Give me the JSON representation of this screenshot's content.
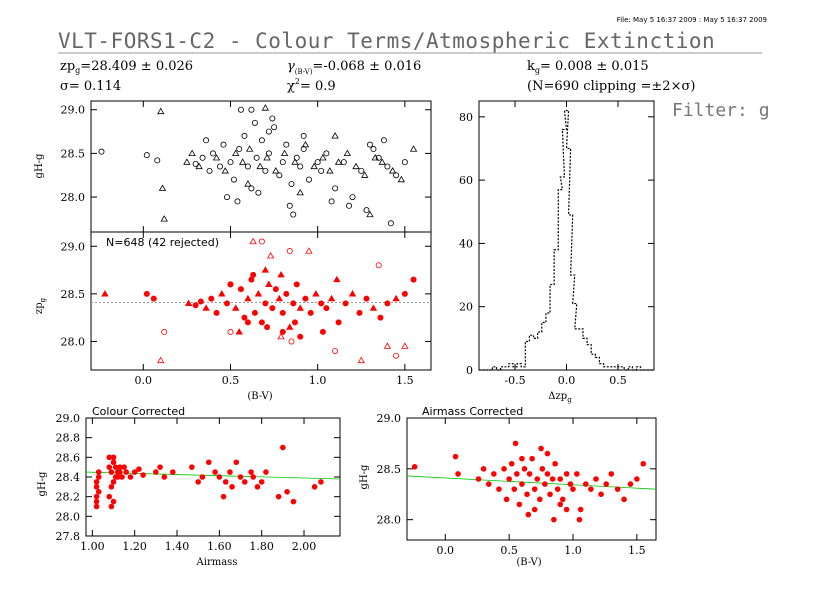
{
  "header": {
    "file_stamp": "File: May  5 16:37 2009 : May  5 16:37 2009",
    "title": "VLT-FORS1-C2 - Colour Terms/Atmospheric Extinction",
    "zp_text": "zp",
    "zp_sub": "g",
    "zp_value": "=28.409 ± 0.026",
    "sigma_text": "σ= 0.114",
    "gamma_text": "γ",
    "gamma_sub": "(B-V)",
    "gamma_value": "=-0.068 ± 0.016",
    "chi_text": "χ",
    "chi_sup": "2",
    "chi_value": "=  0.9",
    "k_text": "k",
    "k_sub": "g",
    "k_value": "= 0.008 ± 0.015",
    "n_text": "(N=690 clipping =±2×σ)",
    "filter_text": "Filter: g"
  },
  "colors": {
    "axis": "#000000",
    "fit": "#FF0000",
    "points": "#FF0000",
    "reference_line": "#00CC00",
    "histogram": "#000000"
  },
  "chart_data": [
    {
      "id": "top-left",
      "type": "scatter",
      "title": "",
      "xlabel": "",
      "ylabel": "gH-g",
      "xlim": [
        -0.3,
        1.65
      ],
      "ylim": [
        27.6,
        29.1
      ],
      "yticks": [
        "28.0",
        "28.5",
        "29.0"
      ],
      "ytick_values": [
        28.0,
        28.5,
        29.0
      ],
      "xtick_values": [
        0.0,
        0.5,
        1.0,
        1.5
      ],
      "series": [
        {
          "marker": "circle",
          "color": "#000000",
          "x": [
            -0.24,
            0.02,
            0.08,
            0.3,
            0.34,
            0.38,
            0.4,
            0.44,
            0.46,
            0.5,
            0.52,
            0.55,
            0.58,
            0.6,
            0.62,
            0.65,
            0.68,
            0.7,
            0.72,
            0.75,
            0.78,
            0.8,
            0.82,
            0.85,
            0.88,
            0.9,
            0.92,
            0.95,
            1.0,
            1.02,
            1.05,
            1.1,
            1.15,
            1.2,
            1.25,
            1.3,
            1.35,
            1.4,
            1.45,
            1.5,
            0.56,
            0.64,
            0.74,
            0.84,
            1.08,
            1.28,
            1.38,
            0.48,
            0.66,
            0.86,
            1.18,
            1.42,
            0.36,
            0.62,
            0.92,
            1.32,
            0.54,
            0.72
          ],
          "y": [
            28.52,
            28.48,
            28.42,
            28.38,
            28.45,
            28.3,
            28.5,
            28.35,
            28.6,
            28.4,
            28.2,
            28.55,
            28.7,
            28.35,
            28.1,
            28.45,
            28.65,
            28.3,
            28.5,
            28.8,
            28.25,
            28.4,
            28.6,
            28.15,
            28.45,
            28.35,
            28.55,
            28.2,
            28.4,
            28.3,
            28.5,
            28.1,
            28.4,
            28.0,
            28.3,
            28.6,
            28.45,
            28.35,
            28.25,
            28.4,
            29.0,
            28.85,
            28.9,
            27.9,
            27.95,
            27.85,
            28.65,
            28.0,
            28.05,
            27.8,
            27.9,
            27.7,
            28.65,
            29.0,
            28.7,
            28.55,
            27.95,
            28.75
          ]
        },
        {
          "marker": "triangle",
          "color": "#000000",
          "x": [
            0.1,
            0.12,
            0.25,
            0.28,
            0.32,
            0.42,
            0.47,
            0.53,
            0.57,
            0.61,
            0.67,
            0.71,
            0.76,
            0.81,
            0.87,
            0.93,
            0.98,
            1.03,
            1.07,
            1.12,
            1.17,
            1.22,
            1.27,
            1.33,
            1.37,
            1.43,
            1.48,
            1.55,
            0.11,
            0.7,
            1.1,
            1.3,
            0.9,
            0.6
          ],
          "y": [
            28.98,
            27.75,
            28.4,
            28.5,
            28.35,
            28.45,
            28.3,
            28.5,
            28.4,
            28.55,
            28.35,
            28.45,
            28.3,
            28.5,
            28.4,
            28.6,
            28.35,
            28.45,
            28.3,
            28.4,
            28.5,
            28.35,
            28.25,
            28.45,
            28.4,
            28.3,
            28.2,
            28.55,
            28.1,
            29.02,
            28.7,
            27.8,
            28.05,
            28.15
          ]
        }
      ]
    },
    {
      "id": "middle-left",
      "type": "scatter",
      "title": "N=648 (42 rejected)",
      "xlabel": "(B-V)",
      "ylabel": "zp_g",
      "xlim": [
        -0.3,
        1.65
      ],
      "ylim": [
        27.7,
        29.15
      ],
      "yticks": [
        "28.0",
        "28.5",
        "29.0"
      ],
      "ytick_values": [
        28.0,
        28.5,
        29.0
      ],
      "xticks": [
        "0.0",
        "0.5",
        "1.0",
        "1.5"
      ],
      "xtick_values": [
        0.0,
        0.5,
        1.0,
        1.5
      ],
      "fit_line": {
        "y": 28.409
      },
      "series": [
        {
          "name": "kept",
          "marker": "filled",
          "color": "#FF0000",
          "x": [
            -0.22,
            0.02,
            0.06,
            0.26,
            0.3,
            0.33,
            0.36,
            0.39,
            0.42,
            0.45,
            0.48,
            0.5,
            0.53,
            0.56,
            0.58,
            0.6,
            0.62,
            0.64,
            0.66,
            0.68,
            0.7,
            0.72,
            0.74,
            0.76,
            0.78,
            0.8,
            0.82,
            0.84,
            0.86,
            0.88,
            0.9,
            0.93,
            0.96,
            0.99,
            1.02,
            1.05,
            1.08,
            1.12,
            1.16,
            1.2,
            1.24,
            1.28,
            1.32,
            1.36,
            1.4,
            1.45,
            1.5,
            1.55,
            0.55,
            0.63,
            0.71,
            0.79,
            0.87,
            1.03,
            1.11,
            0.5,
            0.6,
            0.7,
            0.8,
            0.9
          ],
          "y": [
            28.5,
            28.5,
            28.45,
            28.4,
            28.38,
            28.42,
            28.35,
            28.45,
            28.3,
            28.5,
            28.4,
            28.6,
            28.35,
            28.55,
            28.25,
            28.45,
            28.65,
            28.3,
            28.5,
            28.2,
            28.4,
            28.6,
            28.35,
            28.55,
            28.45,
            28.3,
            28.5,
            28.15,
            28.4,
            28.6,
            28.35,
            28.45,
            28.3,
            28.5,
            28.4,
            28.35,
            28.45,
            28.2,
            28.4,
            28.5,
            28.3,
            28.45,
            28.35,
            28.25,
            28.4,
            28.45,
            28.5,
            28.65,
            28.1,
            28.7,
            28.15,
            28.7,
            28.2,
            28.1,
            28.65,
            28.6,
            28.2,
            28.75,
            28.1,
            28.05
          ]
        },
        {
          "name": "rejected",
          "marker": "open",
          "color": "#FF0000",
          "x": [
            0.12,
            0.1,
            0.5,
            0.63,
            0.68,
            0.73,
            0.85,
            0.95,
            1.1,
            1.25,
            1.35,
            1.4,
            1.45,
            1.5,
            0.84,
            0.79
          ],
          "y": [
            28.1,
            27.8,
            28.1,
            29.05,
            29.05,
            28.9,
            28.0,
            28.95,
            27.9,
            27.8,
            28.8,
            27.95,
            27.85,
            27.95,
            28.95,
            28.05
          ]
        }
      ]
    },
    {
      "id": "histogram",
      "type": "bar",
      "title": "",
      "xlabel": "Δzp_g",
      "ylabel": "",
      "xlim": [
        -0.85,
        0.85
      ],
      "ylim": [
        0,
        85
      ],
      "xticks": [
        "-0.5",
        "0.0",
        "0.5"
      ],
      "xtick_values": [
        -0.5,
        0.0,
        0.5
      ],
      "yticks": [
        "0",
        "20",
        "40",
        "60",
        "80"
      ],
      "ytick_values": [
        0,
        20,
        40,
        60,
        80
      ],
      "bin_centers": [
        -0.82,
        -0.78,
        -0.74,
        -0.7,
        -0.66,
        -0.62,
        -0.58,
        -0.54,
        -0.5,
        -0.46,
        -0.42,
        -0.38,
        -0.34,
        -0.3,
        -0.26,
        -0.22,
        -0.18,
        -0.14,
        -0.1,
        -0.06,
        -0.04,
        -0.02,
        0.0,
        0.02,
        0.04,
        0.06,
        0.08,
        0.1,
        0.14,
        0.18,
        0.22,
        0.26,
        0.3,
        0.34,
        0.38,
        0.42,
        0.46,
        0.5,
        0.54,
        0.58,
        0.62,
        0.66,
        0.7,
        0.74,
        0.78,
        0.82
      ],
      "values": [
        0,
        0,
        0,
        1,
        0,
        1,
        1,
        2,
        1,
        2,
        1,
        9,
        11,
        10,
        12,
        15,
        18,
        27,
        38,
        57,
        61,
        76,
        82,
        70,
        49,
        30,
        21,
        13,
        13,
        10,
        8,
        5,
        4,
        2,
        1,
        1,
        1,
        1,
        1,
        0,
        1,
        0,
        1,
        0,
        0,
        0
      ]
    },
    {
      "id": "colour-corrected",
      "type": "scatter",
      "title": "Colour Corrected",
      "xlabel": "Airmass",
      "ylabel": "gH-g",
      "xlim": [
        0.97,
        2.17
      ],
      "ylim": [
        27.8,
        29.0
      ],
      "xticks": [
        "1.00",
        "1.20",
        "1.40",
        "1.60",
        "1.80",
        "2.00"
      ],
      "xtick_values": [
        1.0,
        1.2,
        1.4,
        1.6,
        1.8,
        2.0
      ],
      "yticks": [
        "27.8",
        "28.0",
        "28.2",
        "28.4",
        "28.6",
        "28.8",
        "29.0"
      ],
      "ytick_values": [
        27.8,
        28.0,
        28.2,
        28.4,
        28.6,
        28.8,
        29.0
      ],
      "reference_line": {
        "x": [
          0.97,
          2.17
        ],
        "y": [
          28.45,
          28.38
        ]
      },
      "x": [
        1.02,
        1.02,
        1.02,
        1.02,
        1.02,
        1.03,
        1.03,
        1.03,
        1.08,
        1.08,
        1.08,
        1.09,
        1.09,
        1.09,
        1.1,
        1.1,
        1.1,
        1.1,
        1.11,
        1.11,
        1.12,
        1.12,
        1.13,
        1.13,
        1.14,
        1.15,
        1.16,
        1.18,
        1.2,
        1.22,
        1.24,
        1.3,
        1.32,
        1.34,
        1.38,
        1.47,
        1.5,
        1.52,
        1.55,
        1.58,
        1.6,
        1.62,
        1.63,
        1.65,
        1.66,
        1.68,
        1.7,
        1.72,
        1.75,
        1.76,
        1.78,
        1.8,
        1.82,
        1.88,
        1.9,
        1.92,
        1.95,
        2.05,
        2.08
      ],
      "y": [
        28.1,
        28.2,
        28.3,
        28.15,
        28.35,
        28.4,
        28.25,
        28.45,
        28.6,
        28.5,
        28.2,
        28.1,
        28.3,
        28.45,
        28.55,
        28.15,
        28.35,
        28.6,
        28.4,
        28.5,
        28.45,
        28.4,
        28.5,
        28.45,
        28.4,
        28.5,
        28.45,
        28.4,
        28.45,
        28.48,
        28.42,
        28.45,
        28.5,
        28.4,
        28.45,
        28.5,
        28.35,
        28.4,
        28.55,
        28.45,
        28.4,
        28.2,
        28.35,
        28.45,
        28.3,
        28.55,
        28.4,
        28.35,
        28.45,
        28.4,
        28.3,
        28.35,
        28.45,
        28.2,
        28.7,
        28.25,
        28.15,
        28.3,
        28.35
      ]
    },
    {
      "id": "airmass-corrected",
      "type": "scatter",
      "title": "Airmass Corrected",
      "xlabel": "(B-V)",
      "ylabel": "gH-g",
      "xlim": [
        -0.3,
        1.65
      ],
      "ylim": [
        27.8,
        29.0
      ],
      "xticks": [
        "0.0",
        "0.5",
        "1.0",
        "1.5"
      ],
      "xtick_values": [
        0.0,
        0.5,
        1.0,
        1.5
      ],
      "yticks": [
        "28.0",
        "28.5",
        "29.0"
      ],
      "ytick_values": [
        28.0,
        28.5,
        29.0
      ],
      "reference_line": {
        "x": [
          -0.3,
          1.65
        ],
        "y": [
          28.43,
          28.3
        ]
      },
      "x": [
        -0.24,
        0.08,
        0.1,
        0.26,
        0.3,
        0.34,
        0.38,
        0.42,
        0.46,
        0.48,
        0.5,
        0.52,
        0.54,
        0.56,
        0.58,
        0.6,
        0.62,
        0.64,
        0.66,
        0.68,
        0.7,
        0.72,
        0.74,
        0.76,
        0.78,
        0.8,
        0.82,
        0.84,
        0.86,
        0.88,
        0.9,
        0.92,
        0.95,
        0.98,
        1.0,
        1.03,
        1.06,
        1.1,
        1.14,
        1.18,
        1.22,
        1.26,
        1.3,
        1.35,
        1.4,
        1.45,
        1.5,
        1.55,
        0.55,
        0.65,
        0.75,
        0.85,
        0.95,
        1.05,
        0.6,
        0.7,
        0.8,
        0.9
      ],
      "y": [
        28.52,
        28.62,
        28.45,
        28.4,
        28.5,
        28.35,
        28.45,
        28.3,
        28.5,
        28.2,
        28.4,
        28.55,
        28.3,
        28.45,
        28.15,
        28.35,
        28.5,
        28.25,
        28.45,
        28.6,
        28.3,
        28.4,
        28.2,
        28.5,
        28.35,
        28.45,
        28.25,
        28.4,
        28.55,
        28.3,
        28.4,
        28.2,
        28.45,
        28.35,
        28.3,
        28.45,
        28.1,
        28.35,
        28.3,
        28.4,
        28.25,
        28.35,
        28.45,
        28.3,
        28.2,
        28.35,
        28.4,
        28.55,
        28.75,
        28.05,
        28.7,
        28.0,
        28.1,
        28.0,
        28.6,
        28.1,
        28.65,
        28.15
      ]
    }
  ]
}
